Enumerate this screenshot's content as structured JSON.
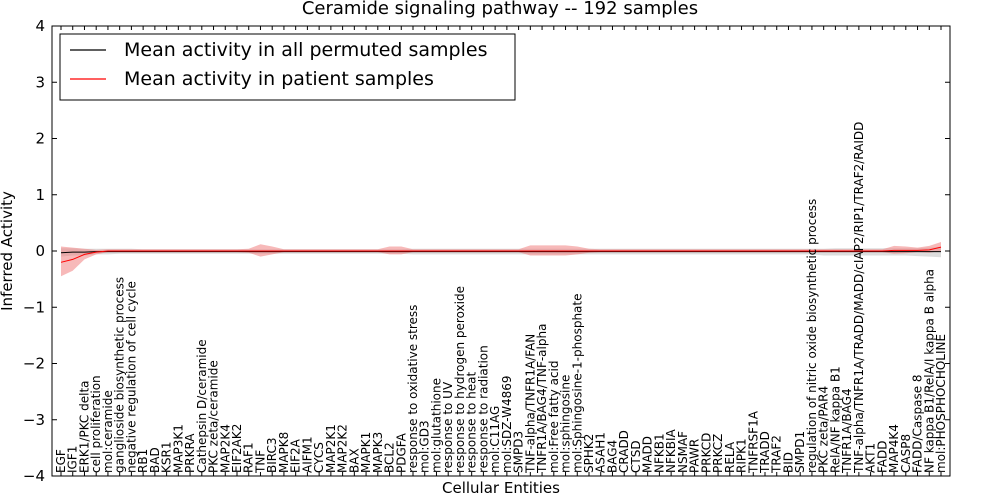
{
  "chart_data": {
    "type": "line",
    "title": "Ceramide signaling pathway -- 192 samples",
    "xlabel": "Cellular Entities",
    "ylabel": "Inferred Activity",
    "ylim": [
      -4,
      4
    ],
    "yticks": [
      -4,
      -3,
      -2,
      -1,
      0,
      1,
      2,
      3,
      4
    ],
    "ytick_labels": [
      "−4",
      "−3",
      "−2",
      "−1",
      "0",
      "1",
      "2",
      "3",
      "4"
    ],
    "legend": {
      "placement": "top-left",
      "entries": [
        {
          "label": "Mean activity in all permuted samples",
          "color": "#000000"
        },
        {
          "label": "Mean activity in patient samples",
          "color": "#ff0000"
        }
      ]
    },
    "categories": [
      "EGF",
      "IGF1",
      "ERK1/PKC delta",
      "cell proliferation",
      "mol:ceramide",
      "ganglioside biosynthetic process",
      "negative regulation of cell cycle",
      "RB1",
      "BAD",
      "KSR1",
      "MAP3K1",
      "PRKRA",
      "Cathepsin D/ceramide",
      "PKC zeta/ceramide",
      "MAP2K4",
      "EIF2AK2",
      "RAF1",
      "TNF",
      "BIRC3",
      "MAPK8",
      "EIF2A",
      "AIFM1",
      "CYCS",
      "MAP2K1",
      "MAP2K2",
      "BAX",
      "MAPK1",
      "MAPK3",
      "BCL2",
      "PDGFA",
      "response to oxidative stress",
      "mol:GD3",
      "mol:glutathione",
      "response to UV",
      "response to hydrogen peroxide",
      "response to heat",
      "response to radiation",
      "mol:C11AG",
      "mol:SDZ-W4869",
      "SMPD3",
      "TNF-alpha/TNFR1A/FAN",
      "TNFR1A/BAG4/TNF-alpha",
      "mol:Free fatty acid",
      "mol:sphingosine",
      "mol:Sphingosine-1-phosphate",
      "SPHK2",
      "ASAH1",
      "BAG4",
      "CRADD",
      "CTSD",
      "MADD",
      "NFKB1",
      "NFKBIA",
      "NSMAF",
      "PAWR",
      "PRKCD",
      "PRKCZ",
      "RELA",
      "RIPK1",
      "TNFRSF1A",
      "TRADD",
      "TRAF2",
      "BID",
      "SMPD1",
      "regulation of nitric oxide biosynthetic process",
      "PKC zeta/PAR4",
      "RelA/NF kappa B1",
      "TNFR1A/BAG4",
      "TNF-alpha/TNFR1A/TRADD/MADD/cIAP2/RIP1/TRAF2/RAIDD",
      "AKT1",
      "FADD",
      "MAP4K4",
      "CASP8",
      "FADD/Caspase 8",
      "NF kappa B1/RelA/I kappa B alpha",
      "mol:PHOSPHOCHOLINE"
    ],
    "series": [
      {
        "name": "Mean activity in all permuted samples",
        "color": "#000000",
        "band_color": "#bbbbbb",
        "values": [
          -0.03,
          -0.02,
          -0.02,
          -0.01,
          -0.01,
          -0.01,
          -0.01,
          -0.01,
          -0.01,
          -0.01,
          -0.01,
          -0.01,
          -0.01,
          -0.01,
          -0.01,
          -0.01,
          -0.01,
          -0.01,
          -0.01,
          -0.01,
          -0.01,
          -0.01,
          -0.01,
          -0.01,
          -0.01,
          -0.01,
          -0.01,
          -0.01,
          -0.01,
          -0.01,
          -0.01,
          -0.01,
          -0.01,
          -0.01,
          -0.01,
          -0.01,
          -0.01,
          -0.01,
          -0.01,
          -0.01,
          -0.01,
          -0.01,
          -0.01,
          -0.01,
          -0.01,
          -0.01,
          -0.01,
          -0.01,
          -0.01,
          -0.01,
          -0.01,
          -0.01,
          -0.01,
          -0.01,
          -0.01,
          -0.01,
          -0.01,
          -0.01,
          -0.01,
          -0.01,
          -0.01,
          -0.01,
          -0.01,
          -0.01,
          -0.01,
          -0.01,
          -0.01,
          -0.01,
          -0.01,
          -0.01,
          -0.01,
          -0.01,
          -0.01,
          -0.01,
          -0.01,
          -0.01
        ],
        "lower": [
          -0.1,
          -0.08,
          -0.08,
          -0.06,
          -0.06,
          -0.05,
          -0.05,
          -0.05,
          -0.05,
          -0.05,
          -0.05,
          -0.05,
          -0.05,
          -0.05,
          -0.05,
          -0.05,
          -0.05,
          -0.05,
          -0.05,
          -0.05,
          -0.05,
          -0.05,
          -0.05,
          -0.05,
          -0.05,
          -0.05,
          -0.05,
          -0.05,
          -0.05,
          -0.05,
          -0.06,
          -0.06,
          -0.06,
          -0.06,
          -0.06,
          -0.06,
          -0.06,
          -0.06,
          -0.06,
          -0.06,
          -0.06,
          -0.06,
          -0.06,
          -0.06,
          -0.06,
          -0.06,
          -0.06,
          -0.06,
          -0.06,
          -0.06,
          -0.06,
          -0.06,
          -0.06,
          -0.06,
          -0.06,
          -0.06,
          -0.06,
          -0.06,
          -0.06,
          -0.06,
          -0.06,
          -0.06,
          -0.06,
          -0.06,
          -0.06,
          -0.08,
          -0.08,
          -0.08,
          -0.08,
          -0.08,
          -0.08,
          -0.08,
          -0.08,
          -0.09,
          -0.1,
          -0.11
        ],
        "upper": [
          0.05,
          0.05,
          0.04,
          0.04,
          0.04,
          0.04,
          0.04,
          0.03,
          0.03,
          0.03,
          0.03,
          0.03,
          0.03,
          0.03,
          0.03,
          0.03,
          0.03,
          0.03,
          0.03,
          0.03,
          0.03,
          0.03,
          0.03,
          0.03,
          0.03,
          0.03,
          0.03,
          0.03,
          0.03,
          0.03,
          0.04,
          0.04,
          0.04,
          0.04,
          0.04,
          0.04,
          0.04,
          0.04,
          0.04,
          0.04,
          0.04,
          0.04,
          0.04,
          0.04,
          0.04,
          0.04,
          0.04,
          0.04,
          0.04,
          0.04,
          0.04,
          0.04,
          0.04,
          0.04,
          0.04,
          0.04,
          0.04,
          0.04,
          0.04,
          0.04,
          0.04,
          0.04,
          0.04,
          0.04,
          0.04,
          0.04,
          0.05,
          0.05,
          0.05,
          0.05,
          0.05,
          0.05,
          0.05,
          0.05,
          0.06,
          0.07
        ]
      },
      {
        "name": "Mean activity in patient samples",
        "color": "#ff0000",
        "band_color": "#f08080",
        "values": [
          -0.2,
          -0.15,
          -0.06,
          -0.02,
          0.0,
          0.0,
          0.0,
          0.0,
          0.0,
          0.0,
          0.0,
          0.0,
          0.0,
          0.0,
          0.0,
          0.0,
          0.0,
          0.0,
          0.0,
          0.0,
          0.0,
          0.0,
          0.0,
          0.0,
          0.0,
          0.0,
          0.0,
          0.0,
          0.0,
          0.0,
          0.0,
          0.0,
          0.0,
          0.0,
          0.0,
          0.0,
          0.0,
          0.0,
          0.0,
          0.0,
          0.0,
          0.0,
          0.0,
          0.0,
          0.0,
          0.0,
          0.0,
          0.0,
          0.0,
          0.0,
          0.0,
          0.0,
          0.0,
          0.0,
          0.0,
          0.0,
          0.0,
          0.0,
          0.0,
          0.0,
          0.0,
          0.0,
          0.0,
          0.0,
          0.0,
          0.0,
          0.0,
          0.0,
          0.0,
          0.0,
          0.0,
          0.01,
          0.01,
          0.01,
          0.02,
          0.07
        ],
        "lower": [
          -0.45,
          -0.35,
          -0.15,
          -0.06,
          -0.02,
          -0.02,
          -0.02,
          -0.02,
          -0.02,
          -0.02,
          -0.02,
          -0.02,
          -0.02,
          -0.02,
          -0.02,
          -0.02,
          -0.03,
          -0.1,
          -0.06,
          -0.02,
          -0.02,
          -0.02,
          -0.02,
          -0.02,
          -0.02,
          -0.02,
          -0.02,
          -0.02,
          -0.06,
          -0.06,
          -0.02,
          -0.02,
          -0.02,
          -0.02,
          -0.02,
          -0.02,
          -0.02,
          -0.02,
          -0.02,
          -0.02,
          -0.08,
          -0.08,
          -0.08,
          -0.08,
          -0.06,
          -0.03,
          -0.02,
          -0.02,
          -0.02,
          -0.02,
          -0.02,
          -0.02,
          -0.02,
          -0.02,
          -0.02,
          -0.02,
          -0.02,
          -0.02,
          -0.02,
          -0.02,
          -0.02,
          -0.02,
          -0.02,
          -0.02,
          -0.02,
          -0.02,
          -0.02,
          -0.02,
          -0.02,
          -0.02,
          -0.02,
          -0.05,
          -0.04,
          -0.02,
          -0.03,
          0.0
        ],
        "upper": [
          0.08,
          0.06,
          0.04,
          0.02,
          0.03,
          0.03,
          0.03,
          0.03,
          0.03,
          0.03,
          0.03,
          0.03,
          0.03,
          0.03,
          0.03,
          0.03,
          0.04,
          0.12,
          0.08,
          0.03,
          0.03,
          0.03,
          0.03,
          0.03,
          0.03,
          0.03,
          0.03,
          0.03,
          0.08,
          0.08,
          0.03,
          0.03,
          0.03,
          0.03,
          0.03,
          0.03,
          0.03,
          0.03,
          0.03,
          0.03,
          0.1,
          0.1,
          0.1,
          0.1,
          0.08,
          0.04,
          0.03,
          0.03,
          0.03,
          0.03,
          0.03,
          0.03,
          0.03,
          0.03,
          0.03,
          0.03,
          0.03,
          0.03,
          0.03,
          0.03,
          0.03,
          0.03,
          0.03,
          0.03,
          0.03,
          0.03,
          0.03,
          0.03,
          0.03,
          0.03,
          0.03,
          0.09,
          0.08,
          0.06,
          0.09,
          0.16
        ]
      }
    ]
  }
}
